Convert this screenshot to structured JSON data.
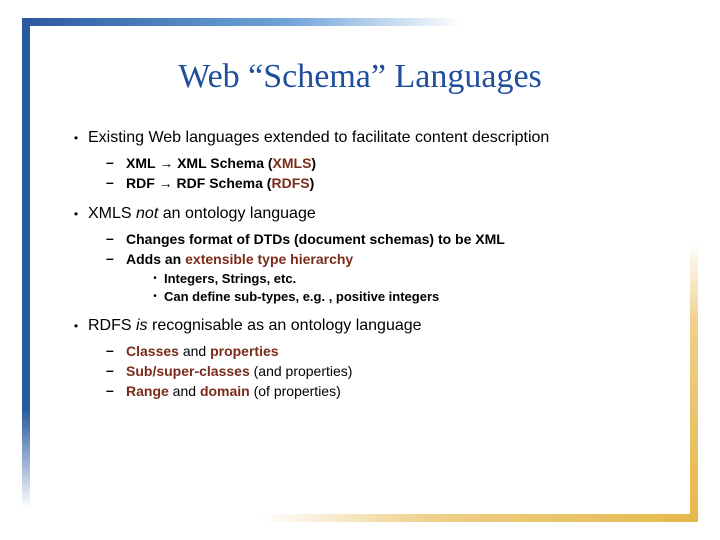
{
  "colors": {
    "title": "#1f4e9c",
    "text": "#000000",
    "accent": "#7a2b1a",
    "border_blue_dark": "#2a5a9e",
    "border_blue_light": "#6fa3d8",
    "border_gold_dark": "#e5b84a",
    "border_gold_light": "#eecf8a",
    "background": "#ffffff"
  },
  "typography": {
    "title_font": "Times New Roman",
    "title_size_pt": 26,
    "body_font": "Arial",
    "body_size_pt": 12,
    "sub_size_pt": 11,
    "subsub_size_pt": 10
  },
  "title": "Web “Schema” Languages",
  "b1_1": "Existing Web languages extended to facilitate content description",
  "b1_1_s1_a": "XML ",
  "b1_1_s1_b": " XML Schema (",
  "b1_1_s1_c": "XMLS",
  "b1_1_s1_d": ")",
  "b1_1_s2_a": "RDF ",
  "b1_1_s2_b": " RDF Schema (",
  "b1_1_s2_c": "RDFS",
  "b1_1_s2_d": ")",
  "b1_2_a": "XMLS ",
  "b1_2_b": "not",
  "b1_2_c": " an ontology language",
  "b1_2_s1": "Changes format of DTDs (document schemas) to be XML",
  "b1_2_s2_a": "Adds an ",
  "b1_2_s2_b": "extensible type hierarchy",
  "b1_2_s2_s1": "Integers, Strings, etc.",
  "b1_2_s2_s2": "Can define sub-types, e.g. , positive integers",
  "b1_3_a": "RDFS ",
  "b1_3_b": "is",
  "b1_3_c": " recognisable as an ontology language",
  "b1_3_s1_a": "Classes",
  "b1_3_s1_b": " and ",
  "b1_3_s1_c": "properties",
  "b1_3_s2_a": "Sub/super-classes",
  "b1_3_s2_b": " (and properties)",
  "b1_3_s3_a": "Range",
  "b1_3_s3_b": " and ",
  "b1_3_s3_c": "domain",
  "b1_3_s3_d": " (of properties)",
  "arrow": "→"
}
